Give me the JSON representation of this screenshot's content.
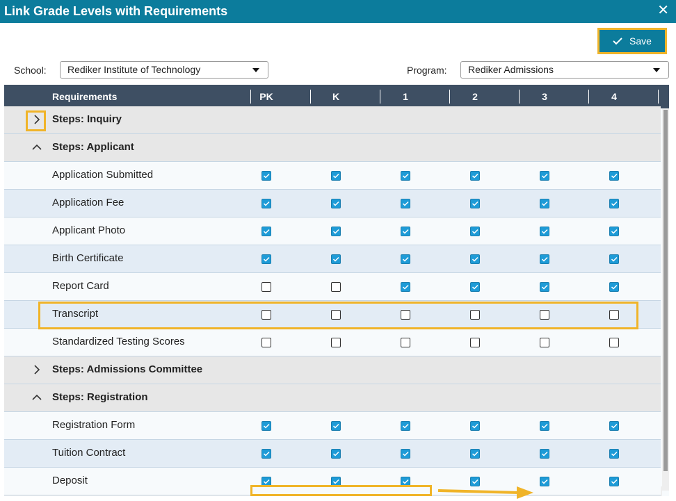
{
  "title": "Link Grade Levels with Requirements",
  "save_button": "Save",
  "filters": [
    {
      "label": "School:",
      "value": "Rediker Institute of Technology"
    },
    {
      "label": "Program:",
      "value": "Rediker Admissions"
    }
  ],
  "table": {
    "columns": [
      "Requirements",
      "PK",
      "K",
      "1",
      "2",
      "3",
      "4"
    ],
    "rows": [
      {
        "label": "Steps: Inquiry",
        "group": true,
        "expanded": false
      },
      {
        "label": "Steps: Applicant",
        "group": true,
        "expanded": true
      },
      {
        "label": "Application Submitted",
        "checks": [
          true,
          true,
          true,
          true,
          true,
          true
        ]
      },
      {
        "label": "Application Fee",
        "checks": [
          true,
          true,
          true,
          true,
          true,
          true
        ]
      },
      {
        "label": "Applicant Photo",
        "checks": [
          true,
          true,
          true,
          true,
          true,
          true
        ]
      },
      {
        "label": "Birth Certificate",
        "checks": [
          true,
          true,
          true,
          true,
          true,
          true
        ]
      },
      {
        "label": "Report Card",
        "checks": [
          false,
          false,
          true,
          true,
          true,
          true
        ]
      },
      {
        "label": "Transcript",
        "checks": [
          false,
          false,
          false,
          false,
          false,
          false
        ]
      },
      {
        "label": "Standardized Testing Scores",
        "checks": [
          false,
          false,
          false,
          false,
          false,
          false
        ]
      },
      {
        "label": "Steps: Admissions Committee",
        "group": true,
        "expanded": false
      },
      {
        "label": "Steps: Registration",
        "group": true,
        "expanded": true
      },
      {
        "label": "Registration Form",
        "checks": [
          true,
          true,
          true,
          true,
          true,
          true
        ]
      },
      {
        "label": "Tuition Contract",
        "checks": [
          true,
          true,
          true,
          true,
          true,
          true
        ]
      },
      {
        "label": "Deposit",
        "checks": [
          true,
          true,
          true,
          true,
          true,
          true
        ]
      }
    ]
  }
}
